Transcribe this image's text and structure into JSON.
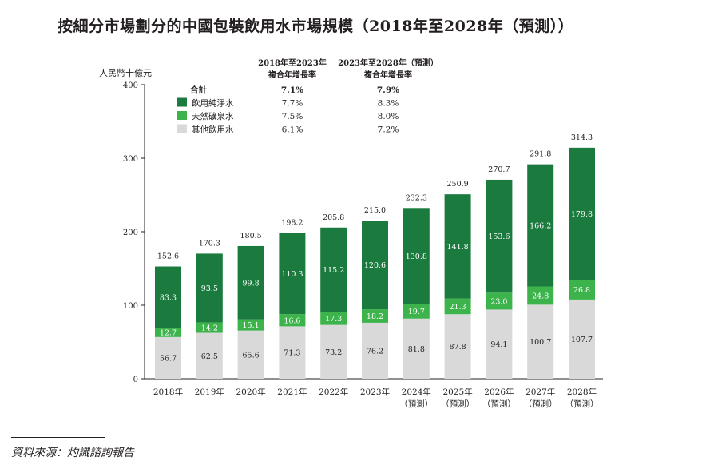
{
  "page": {
    "title": "按細分市場劃分的中國包裝飲用水市場規模（2018年至2028年（預測））",
    "source": "資料來源：灼識諮詢報告"
  },
  "colors": {
    "pure_water": "#1b7a3e",
    "mineral_water": "#3cb44b",
    "other_water": "#d9d9da",
    "axis": "#231f20"
  },
  "chart_data": {
    "type": "bar",
    "stacked": true,
    "title": "按細分市場劃分的中國包裝飲用水市場規模（2018年至2028年（預測））",
    "ylabel": "人民幣十億元",
    "xlabel": "",
    "ylim": [
      0,
      400
    ],
    "yticks": [
      0,
      100,
      200,
      300,
      400
    ],
    "categories": [
      {
        "year": "2018年",
        "note": ""
      },
      {
        "year": "2019年",
        "note": ""
      },
      {
        "year": "2020年",
        "note": ""
      },
      {
        "year": "2021年",
        "note": ""
      },
      {
        "year": "2022年",
        "note": ""
      },
      {
        "year": "2023年",
        "note": ""
      },
      {
        "year": "2024年",
        "note": "（預測）"
      },
      {
        "year": "2025年",
        "note": "（預測）"
      },
      {
        "year": "2026年",
        "note": "（預測）"
      },
      {
        "year": "2027年",
        "note": "（預測）"
      },
      {
        "year": "2028年",
        "note": "（預測）"
      }
    ],
    "series": [
      {
        "key": "other",
        "name": "其他飲用水",
        "values": [
          56.7,
          62.5,
          65.6,
          71.3,
          73.2,
          76.2,
          81.8,
          87.8,
          94.1,
          100.7,
          107.7
        ]
      },
      {
        "key": "mineral",
        "name": "天然礦泉水",
        "values": [
          12.7,
          14.2,
          15.1,
          16.6,
          17.3,
          18.2,
          19.7,
          21.3,
          23.0,
          24.8,
          26.8
        ]
      },
      {
        "key": "pure",
        "name": "飲用純淨水",
        "values": [
          83.3,
          93.5,
          99.8,
          110.3,
          115.2,
          120.6,
          130.8,
          141.8,
          153.6,
          166.2,
          179.8
        ]
      }
    ],
    "totals": [
      152.6,
      170.3,
      180.5,
      198.2,
      205.8,
      215.0,
      232.3,
      250.9,
      270.7,
      291.8,
      314.3
    ],
    "cagr_table": {
      "headers": [
        {
          "line1": "2018年至2023年",
          "line2": "複合年增長率"
        },
        {
          "line1": "2023年至2028年（預測）",
          "line2": "複合年增長率"
        }
      ],
      "rows": [
        {
          "label": "合計",
          "swatch": "",
          "bold": true,
          "v1": "7.1%",
          "v2": "7.9%"
        },
        {
          "label": "飲用純淨水",
          "swatch": "pure",
          "bold": false,
          "v1": "7.7%",
          "v2": "8.3%"
        },
        {
          "label": "天然礦泉水",
          "swatch": "mineral",
          "bold": false,
          "v1": "7.5%",
          "v2": "8.0%"
        },
        {
          "label": "其他飲用水",
          "swatch": "other",
          "bold": false,
          "v1": "6.1%",
          "v2": "7.2%"
        }
      ]
    }
  }
}
